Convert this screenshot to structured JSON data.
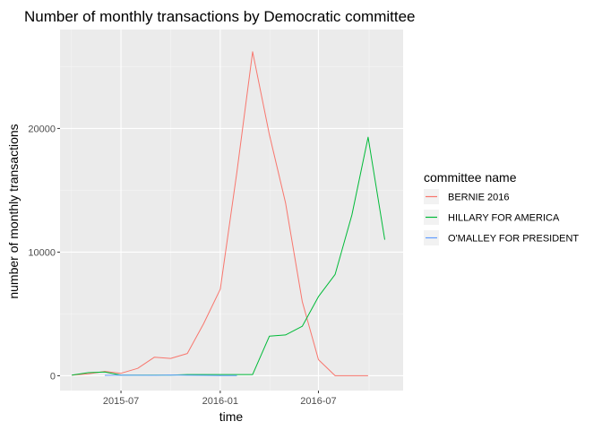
{
  "chart_data": {
    "type": "line",
    "title": "Number of monthly transactions by Democratic committee",
    "xlabel": "time",
    "ylabel": "number of monthly transactions",
    "x": [
      "2015-04-01",
      "2015-05-01",
      "2015-06-01",
      "2015-07-01",
      "2015-08-01",
      "2015-09-01",
      "2015-10-01",
      "2015-11-01",
      "2015-12-01",
      "2016-01-01",
      "2016-02-01",
      "2016-03-01",
      "2016-04-01",
      "2016-05-01",
      "2016-06-01",
      "2016-07-01",
      "2016-08-01",
      "2016-09-01",
      "2016-10-01",
      "2016-11-01"
    ],
    "xlim": [
      "2015-03-10",
      "2016-12-05"
    ],
    "ylim": [
      -1200,
      28000
    ],
    "x_ticks": [
      {
        "value": "2015-07-01",
        "label": "2015-07"
      },
      {
        "value": "2016-01-01",
        "label": "2016-01"
      },
      {
        "value": "2016-07-01",
        "label": "2016-07"
      }
    ],
    "y_ticks": [
      {
        "value": 0,
        "label": "0"
      },
      {
        "value": 10000,
        "label": "10000"
      },
      {
        "value": 20000,
        "label": "20000"
      }
    ],
    "grid": true,
    "legend": {
      "title": "committee name",
      "position": "right"
    },
    "series": [
      {
        "name": "BERNIE 2016",
        "color": "#F8766D",
        "values": [
          50,
          150,
          350,
          200,
          600,
          1500,
          1400,
          1800,
          4200,
          7000,
          16500,
          26200,
          19500,
          14000,
          6000,
          1300,
          0,
          0,
          0,
          null
        ]
      },
      {
        "name": "HILLARY FOR AMERICA",
        "color": "#00BA38",
        "values": [
          50,
          250,
          300,
          50,
          50,
          50,
          50,
          100,
          100,
          100,
          100,
          100,
          3200,
          3300,
          4000,
          6400,
          8200,
          13000,
          19300,
          11000
        ]
      },
      {
        "name": "O'MALLEY FOR PRESIDENT",
        "color": "#619CFF",
        "values": [
          null,
          null,
          30,
          50,
          40,
          30,
          60,
          40,
          30,
          20,
          10,
          null,
          null,
          null,
          null,
          null,
          null,
          null,
          null,
          null
        ]
      }
    ]
  }
}
